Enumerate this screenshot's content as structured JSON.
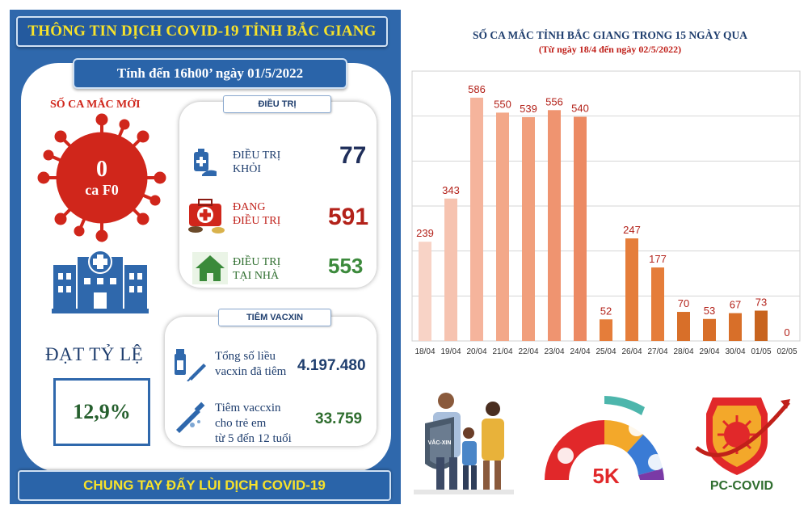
{
  "header": {
    "title": "THÔNG TIN DỊCH COVID-19 TỈNH BẮC GIANG",
    "date": "Tính đến 16h00’ ngày 01/5/2022"
  },
  "new_cases": {
    "label": "SỐ CA MẮC MỚI",
    "value": "0",
    "unit": "ca F0"
  },
  "treatment": {
    "tag": "ĐIỀU TRỊ",
    "recovered": {
      "label_line1": "ĐIỀU TRỊ",
      "label_line2": "KHỎI",
      "value": "77"
    },
    "in_treatment": {
      "label_line1": "ĐANG",
      "label_line2": "ĐIỀU TRỊ",
      "value": "591"
    },
    "at_home": {
      "label_line1": "ĐIỀU TRỊ",
      "label_line2": "TẠI NHÀ",
      "value": "553"
    }
  },
  "vaccine": {
    "tag": "TIÊM VACXIN",
    "rate_label": "ĐẠT TỶ LỆ",
    "rate_value": "12,9%",
    "total": {
      "line1": "Tổng số liều",
      "line2": "vacxin đã tiêm",
      "value": "4.197.480"
    },
    "children": {
      "line1": "Tiêm vaccxin",
      "line2": "cho trẻ em",
      "line3": "từ 5 đến 12 tuổi",
      "value": "33.759"
    }
  },
  "footer": {
    "slogan": "CHUNG TAY ĐẨY LÙI DỊCH COVID-19"
  },
  "graphics": {
    "shield_text": "VẮC-XIN",
    "five_k": "5K",
    "pc_covid": "PC-COVID"
  },
  "colors": {
    "panel_blue": "#2f68ac",
    "title_yellow": "#f7e22a",
    "virus_red": "#d0261b"
  },
  "chart_data": {
    "type": "bar",
    "title": "SỐ CA MẮC TỈNH  BẮC GIANG TRONG 15 NGÀY QUA",
    "subtitle": "(Từ ngày 18/4 đến ngày 02/5/2022)",
    "categories": [
      "18/04",
      "19/04",
      "20/04",
      "21/04",
      "22/04",
      "23/04",
      "24/04",
      "25/04",
      "26/04",
      "27/04",
      "28/04",
      "29/04",
      "30/04",
      "01/05",
      "02/05"
    ],
    "values": [
      239,
      343,
      586,
      550,
      539,
      556,
      540,
      52,
      247,
      177,
      70,
      53,
      67,
      73,
      0
    ],
    "bar_colors": [
      "#f8d3c6",
      "#f6c3b0",
      "#f5b49c",
      "#f3a889",
      "#f19f7c",
      "#ef9470",
      "#ec8a63",
      "#e57d3a",
      "#e57d3a",
      "#e57d3a",
      "#d86f29",
      "#d86f29",
      "#d86f29",
      "#c8641f",
      "#c8641f"
    ],
    "ylim": [
      0,
      650
    ],
    "grid": true,
    "label_color": "#b3221a"
  }
}
